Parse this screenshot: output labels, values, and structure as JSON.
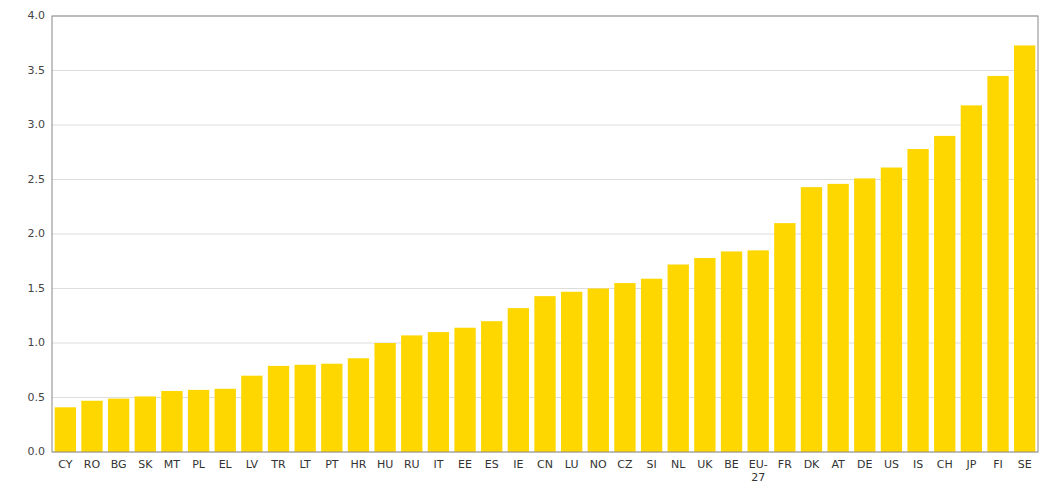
{
  "chart_data": {
    "type": "bar",
    "categories": [
      "CY",
      "RO",
      "BG",
      "SK",
      "MT",
      "PL",
      "EL",
      "LV",
      "TR",
      "LT",
      "PT",
      "HR",
      "HU",
      "RU",
      "IT",
      "EE",
      "ES",
      "IE",
      "CN",
      "LU",
      "NO",
      "CZ",
      "SI",
      "NL",
      "UK",
      "BE",
      "EU-\n27",
      "FR",
      "DK",
      "AT",
      "DE",
      "US",
      "IS",
      "CH",
      "JP",
      "FI",
      "SE"
    ],
    "values": [
      0.41,
      0.47,
      0.49,
      0.51,
      0.56,
      0.57,
      0.58,
      0.7,
      0.79,
      0.8,
      0.81,
      0.86,
      1.0,
      1.07,
      1.1,
      1.14,
      1.2,
      1.32,
      1.43,
      1.47,
      1.5,
      1.55,
      1.59,
      1.72,
      1.78,
      1.84,
      1.85,
      2.1,
      2.43,
      2.46,
      2.51,
      2.61,
      2.78,
      2.9,
      3.18,
      3.45,
      3.73
    ],
    "color": "#FFD700",
    "ylim": [
      0,
      4.0
    ],
    "yticks": [
      {
        "value": 0,
        "label": "0.0"
      },
      0.5,
      {
        "value": 1.0,
        "label": "1.0"
      },
      1.5,
      {
        "value": 2.0,
        "label": "2.0"
      },
      2.5,
      {
        "value": 3.0,
        "label": "3.0"
      },
      3.5,
      {
        "value": 4.0,
        "label": "4.0"
      }
    ],
    "grid": true
  }
}
